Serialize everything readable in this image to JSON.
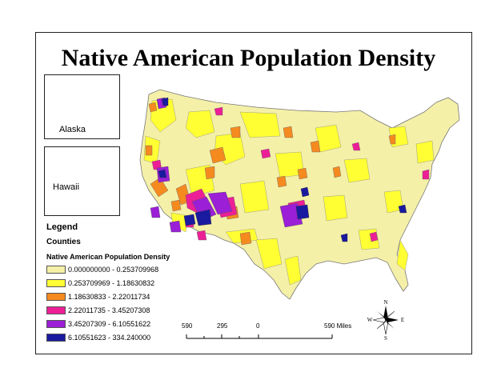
{
  "title": "Native American Population Density",
  "insets": {
    "alaska_label": "Alaska",
    "hawaii_label": "Hawaii"
  },
  "legend": {
    "title": "Legend",
    "subtitle": "Counties",
    "field": "Native American Population Density",
    "classes": [
      {
        "label": "0.000000000 - 0.253709968",
        "color": "#f5f0a8"
      },
      {
        "label": "0.253709969 - 1.18630832",
        "color": "#ffff33"
      },
      {
        "label": "1.18630833 - 2.22011734",
        "color": "#f58a1f"
      },
      {
        "label": "2.22011735 - 3.45207308",
        "color": "#ec1f96"
      },
      {
        "label": "3.45207309 - 6.10551622",
        "color": "#9a1fd6"
      },
      {
        "label": "6.10551623 - 334.240000",
        "color": "#1a1aa0"
      }
    ]
  },
  "scale_bar": {
    "labels": [
      "590",
      "295",
      "0",
      "590 Miles"
    ]
  },
  "north_arrow": {
    "n": "N",
    "s": "S",
    "e": "E",
    "w": "W"
  }
}
